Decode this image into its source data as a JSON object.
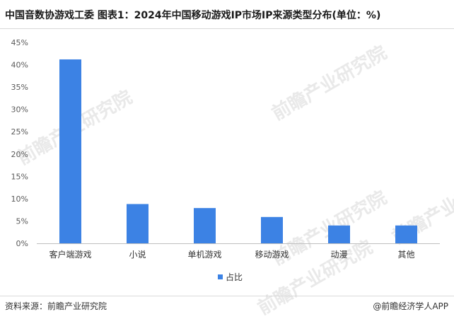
{
  "header": {
    "title": "中国音数协游戏工委 图表1：2024年中国移动游戏IP市场IP来源类型分布(单位：%)"
  },
  "footer": {
    "source": "资料来源：前瞻产业研究院",
    "credit": "@前瞻经济学人APP"
  },
  "watermark": {
    "text": "前瞻产业研究院"
  },
  "colors": {
    "bar": "#3c82e4",
    "axis": "#bfbfbf",
    "grid": "#e6e6e6"
  },
  "chart_data": {
    "type": "bar",
    "categories": [
      "客户端游戏",
      "小说",
      "单机游戏",
      "移动游戏",
      "动漫",
      "其他"
    ],
    "series": [
      {
        "name": "占比",
        "values": [
          41.2,
          8.8,
          7.9,
          5.9,
          4.0,
          4.0
        ]
      }
    ],
    "ylim": [
      0,
      45
    ],
    "yticks": [
      "0%",
      "5%",
      "10%",
      "15%",
      "20%",
      "25%",
      "30%",
      "35%",
      "40%",
      "45%"
    ],
    "grid": false,
    "legend_position": "bottom-center"
  }
}
